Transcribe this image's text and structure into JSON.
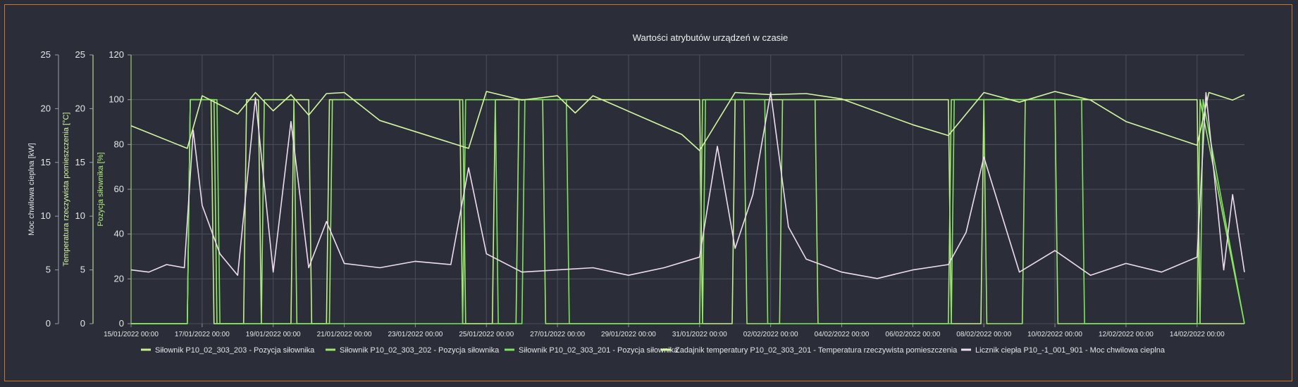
{
  "chart_data": {
    "type": "line",
    "title": "Wartości atrybutów urządzeń w czasie",
    "x_ticks": [
      "15/01/2022 00:00",
      "17/01/2022 00:00",
      "19/01/2022 00:00",
      "21/01/2022 00:00",
      "23/01/2022 00:00",
      "25/01/2022 00:00",
      "27/01/2022 00:00",
      "29/01/2022 00:00",
      "31/01/2022 00:00",
      "02/02/2022 00:00",
      "04/02/2022 00:00",
      "06/02/2022 00:00",
      "08/02/2022 00:00",
      "10/02/2022 00:00",
      "12/02/2022 00:00",
      "14/02/2022 00:00"
    ],
    "xlim": [
      "15/01/2022 00:00",
      "15/02/2022 08:00"
    ],
    "grid": true,
    "legend_position": "bottom",
    "axes": [
      {
        "id": "power",
        "label": "Moc chwilowa cieplna [kW]",
        "ylim": [
          0,
          25
        ],
        "ticks": [
          0,
          5,
          10,
          15,
          20,
          25
        ],
        "color": "#e6e6e6"
      },
      {
        "id": "temp",
        "label": "Temperatura rzeczywista pomieszczenia [°C]",
        "ylim": [
          0,
          25
        ],
        "ticks": [
          0,
          5,
          10,
          15,
          20,
          25
        ],
        "color": "#d4f7a0"
      },
      {
        "id": "pos",
        "label": "Pozycja siłownika [%]",
        "ylim": [
          0,
          120
        ],
        "ticks": [
          0,
          20,
          40,
          60,
          80,
          100,
          120
        ],
        "color": "#b0f07a"
      }
    ],
    "series": [
      {
        "name": "Siłownik P10_02_303_203 - Pozycja siłownika",
        "axis": "pos",
        "color": "#c2f08a",
        "x": [
          "15/01/2022 00:00",
          "16/01/2022 14:00",
          "16/01/2022 16:00",
          "16/01/2022 18:00",
          "17/01/2022 06:00",
          "17/01/2022 08:00",
          "18/01/2022 04:00",
          "18/01/2022 06:00",
          "18/01/2022 14:00",
          "18/01/2022 16:00",
          "19/01/2022 12:00",
          "19/01/2022 14:00",
          "20/01/2022 00:00",
          "20/01/2022 02:00",
          "20/01/2022 12:00",
          "20/01/2022 14:00",
          "24/01/2022 06:00",
          "24/01/2022 08:00",
          "25/01/2022 04:00",
          "25/01/2022 06:00",
          "31/01/2022 00:00",
          "31/01/2022 02:00",
          "31/01/2022 22:00",
          "01/02/2022 00:00",
          "07/02/2022 00:00",
          "07/02/2022 02:00",
          "07/02/2022 22:00",
          "08/02/2022 00:00",
          "14/02/2022 00:00",
          "14/02/2022 02:00",
          "14/02/2022 10:00",
          "14/02/2022 12:00",
          "15/02/2022 08:00"
        ],
        "values": [
          0,
          0,
          100,
          100,
          100,
          0,
          0,
          100,
          100,
          0,
          0,
          100,
          100,
          0,
          0,
          100,
          100,
          0,
          0,
          100,
          100,
          0,
          0,
          100,
          100,
          0,
          0,
          100,
          100,
          0,
          0,
          0,
          0
        ]
      },
      {
        "name": "Siłownik P10_02_303_202 - Pozycja siłownika",
        "axis": "pos",
        "color": "#9be86a",
        "x": [
          "15/01/2022 00:00",
          "16/01/2022 14:00",
          "16/01/2022 16:00",
          "17/01/2022 08:00",
          "17/01/2022 10:00",
          "18/01/2022 16:00",
          "18/01/2022 18:00",
          "19/01/2022 14:00",
          "19/01/2022 16:00",
          "20/01/2022 14:00",
          "20/01/2022 16:00",
          "24/01/2022 08:00",
          "24/01/2022 10:00",
          "25/01/2022 20:00",
          "25/01/2022 22:00",
          "26/01/2022 14:00",
          "26/01/2022 16:00",
          "31/01/2022 00:00",
          "31/01/2022 02:00",
          "01/02/2022 06:00",
          "01/02/2022 08:00",
          "02/02/2022 06:00",
          "02/02/2022 08:00",
          "03/02/2022 06:00",
          "03/02/2022 08:00",
          "07/02/2022 00:00",
          "07/02/2022 02:00",
          "08/02/2022 00:00",
          "08/02/2022 02:00",
          "09/02/2022 02:00",
          "09/02/2022 04:00",
          "10/02/2022 00:00",
          "10/02/2022 02:00",
          "14/02/2022 00:00",
          "14/02/2022 02:00",
          "15/02/2022 08:00"
        ],
        "values": [
          0,
          0,
          100,
          100,
          0,
          0,
          100,
          100,
          0,
          0,
          100,
          100,
          0,
          0,
          100,
          100,
          0,
          0,
          100,
          100,
          0,
          0,
          100,
          100,
          0,
          0,
          100,
          100,
          0,
          0,
          100,
          100,
          0,
          0,
          100,
          0
        ]
      },
      {
        "name": "Siłownik P10_02_303_201 - Pozycja siłownika",
        "axis": "pos",
        "color": "#7de55a",
        "x": [
          "15/01/2022 00:00",
          "16/01/2022 14:00",
          "16/01/2022 16:00",
          "17/01/2022 10:00",
          "17/01/2022 12:00",
          "24/01/2022 08:00",
          "24/01/2022 10:00",
          "25/01/2022 06:00",
          "25/01/2022 08:00",
          "26/01/2022 00:00",
          "26/01/2022 02:00",
          "27/01/2022 06:00",
          "27/01/2022 08:00",
          "31/01/2022 02:00",
          "31/01/2022 04:00",
          "01/02/2022 20:00",
          "01/02/2022 22:00",
          "07/02/2022 02:00",
          "07/02/2022 04:00",
          "10/02/2022 18:00",
          "10/02/2022 20:00",
          "14/02/2022 02:00",
          "14/02/2022 04:00",
          "15/02/2022 08:00"
        ],
        "values": [
          0,
          0,
          100,
          100,
          0,
          0,
          100,
          100,
          0,
          0,
          100,
          100,
          0,
          0,
          100,
          100,
          0,
          0,
          100,
          100,
          0,
          0,
          100,
          0
        ]
      },
      {
        "name": "Zadajnik temperatury P10_02_303_201 - Temperatura rzeczywista pomieszczenia",
        "axis": "temp",
        "color": "#d4f7a0",
        "x": [
          "15/01/2022 00:00",
          "16/01/2022 14:00",
          "17/01/2022 00:00",
          "18/01/2022 00:00",
          "18/01/2022 12:00",
          "19/01/2022 00:00",
          "19/01/2022 12:00",
          "20/01/2022 00:00",
          "20/01/2022 12:00",
          "21/01/2022 00:00",
          "22/01/2022 00:00",
          "24/01/2022 12:00",
          "25/01/2022 00:00",
          "26/01/2022 00:00",
          "27/01/2022 00:00",
          "27/01/2022 12:00",
          "28/01/2022 00:00",
          "30/01/2022 12:00",
          "31/01/2022 00:00",
          "01/02/2022 00:00",
          "02/02/2022 00:00",
          "03/02/2022 00:00",
          "04/02/2022 00:00",
          "06/02/2022 00:00",
          "07/02/2022 00:00",
          "08/02/2022 00:00",
          "09/02/2022 00:00",
          "10/02/2022 00:00",
          "11/02/2022 00:00",
          "12/02/2022 00:00",
          "14/02/2022 00:00",
          "14/02/2022 08:00",
          "15/02/2022 00:00",
          "15/02/2022 08:00"
        ],
        "values": [
          18.4,
          16.3,
          21.2,
          19.5,
          21.5,
          19.8,
          21.3,
          19.4,
          21.4,
          21.5,
          18.9,
          16.3,
          21.6,
          20.8,
          21.2,
          19.6,
          21.2,
          17.6,
          16.1,
          21.5,
          21.3,
          21.4,
          20.9,
          18.5,
          17.5,
          21.5,
          20.6,
          21.6,
          20.8,
          18.8,
          16.6,
          21.5,
          20.8,
          21.3
        ]
      },
      {
        "name": "Licznik ciepła P10_-1_001_901 - Moc chwilowa cieplna",
        "axis": "power",
        "color": "#f0dcef",
        "x": [
          "15/01/2022 00:00",
          "15/01/2022 12:00",
          "16/01/2022 00:00",
          "16/01/2022 12:00",
          "16/01/2022 18:00",
          "17/01/2022 00:00",
          "17/01/2022 12:00",
          "18/01/2022 00:00",
          "18/01/2022 12:00",
          "19/01/2022 00:00",
          "19/01/2022 12:00",
          "20/01/2022 00:00",
          "20/01/2022 12:00",
          "21/01/2022 00:00",
          "22/01/2022 00:00",
          "23/01/2022 00:00",
          "24/01/2022 00:00",
          "24/01/2022 12:00",
          "25/01/2022 00:00",
          "26/01/2022 00:00",
          "27/01/2022 00:00",
          "28/01/2022 00:00",
          "29/01/2022 00:00",
          "30/01/2022 00:00",
          "31/01/2022 00:00",
          "31/01/2022 12:00",
          "01/02/2022 00:00",
          "01/02/2022 12:00",
          "02/02/2022 00:00",
          "02/02/2022 12:00",
          "03/02/2022 00:00",
          "04/02/2022 00:00",
          "05/02/2022 00:00",
          "06/02/2022 00:00",
          "07/02/2022 00:00",
          "07/02/2022 12:00",
          "08/02/2022 00:00",
          "09/02/2022 00:00",
          "10/02/2022 00:00",
          "11/02/2022 00:00",
          "12/02/2022 00:00",
          "13/02/2022 00:00",
          "14/02/2022 00:00",
          "14/02/2022 06:00",
          "14/02/2022 18:00",
          "15/02/2022 00:00",
          "15/02/2022 08:00"
        ],
        "values": [
          5.0,
          4.8,
          5.5,
          5.2,
          18.0,
          11.0,
          6.5,
          4.5,
          21.0,
          4.8,
          18.8,
          5.2,
          9.5,
          5.6,
          5.2,
          5.8,
          5.5,
          14.5,
          6.5,
          4.8,
          5.0,
          5.2,
          4.5,
          5.2,
          6.2,
          16.5,
          7.0,
          12.0,
          21.5,
          9.0,
          6.0,
          4.8,
          4.2,
          5.0,
          5.5,
          8.5,
          15.5,
          4.8,
          6.8,
          4.5,
          5.6,
          4.8,
          6.2,
          21.5,
          5.0,
          12.0,
          4.8
        ]
      }
    ]
  }
}
